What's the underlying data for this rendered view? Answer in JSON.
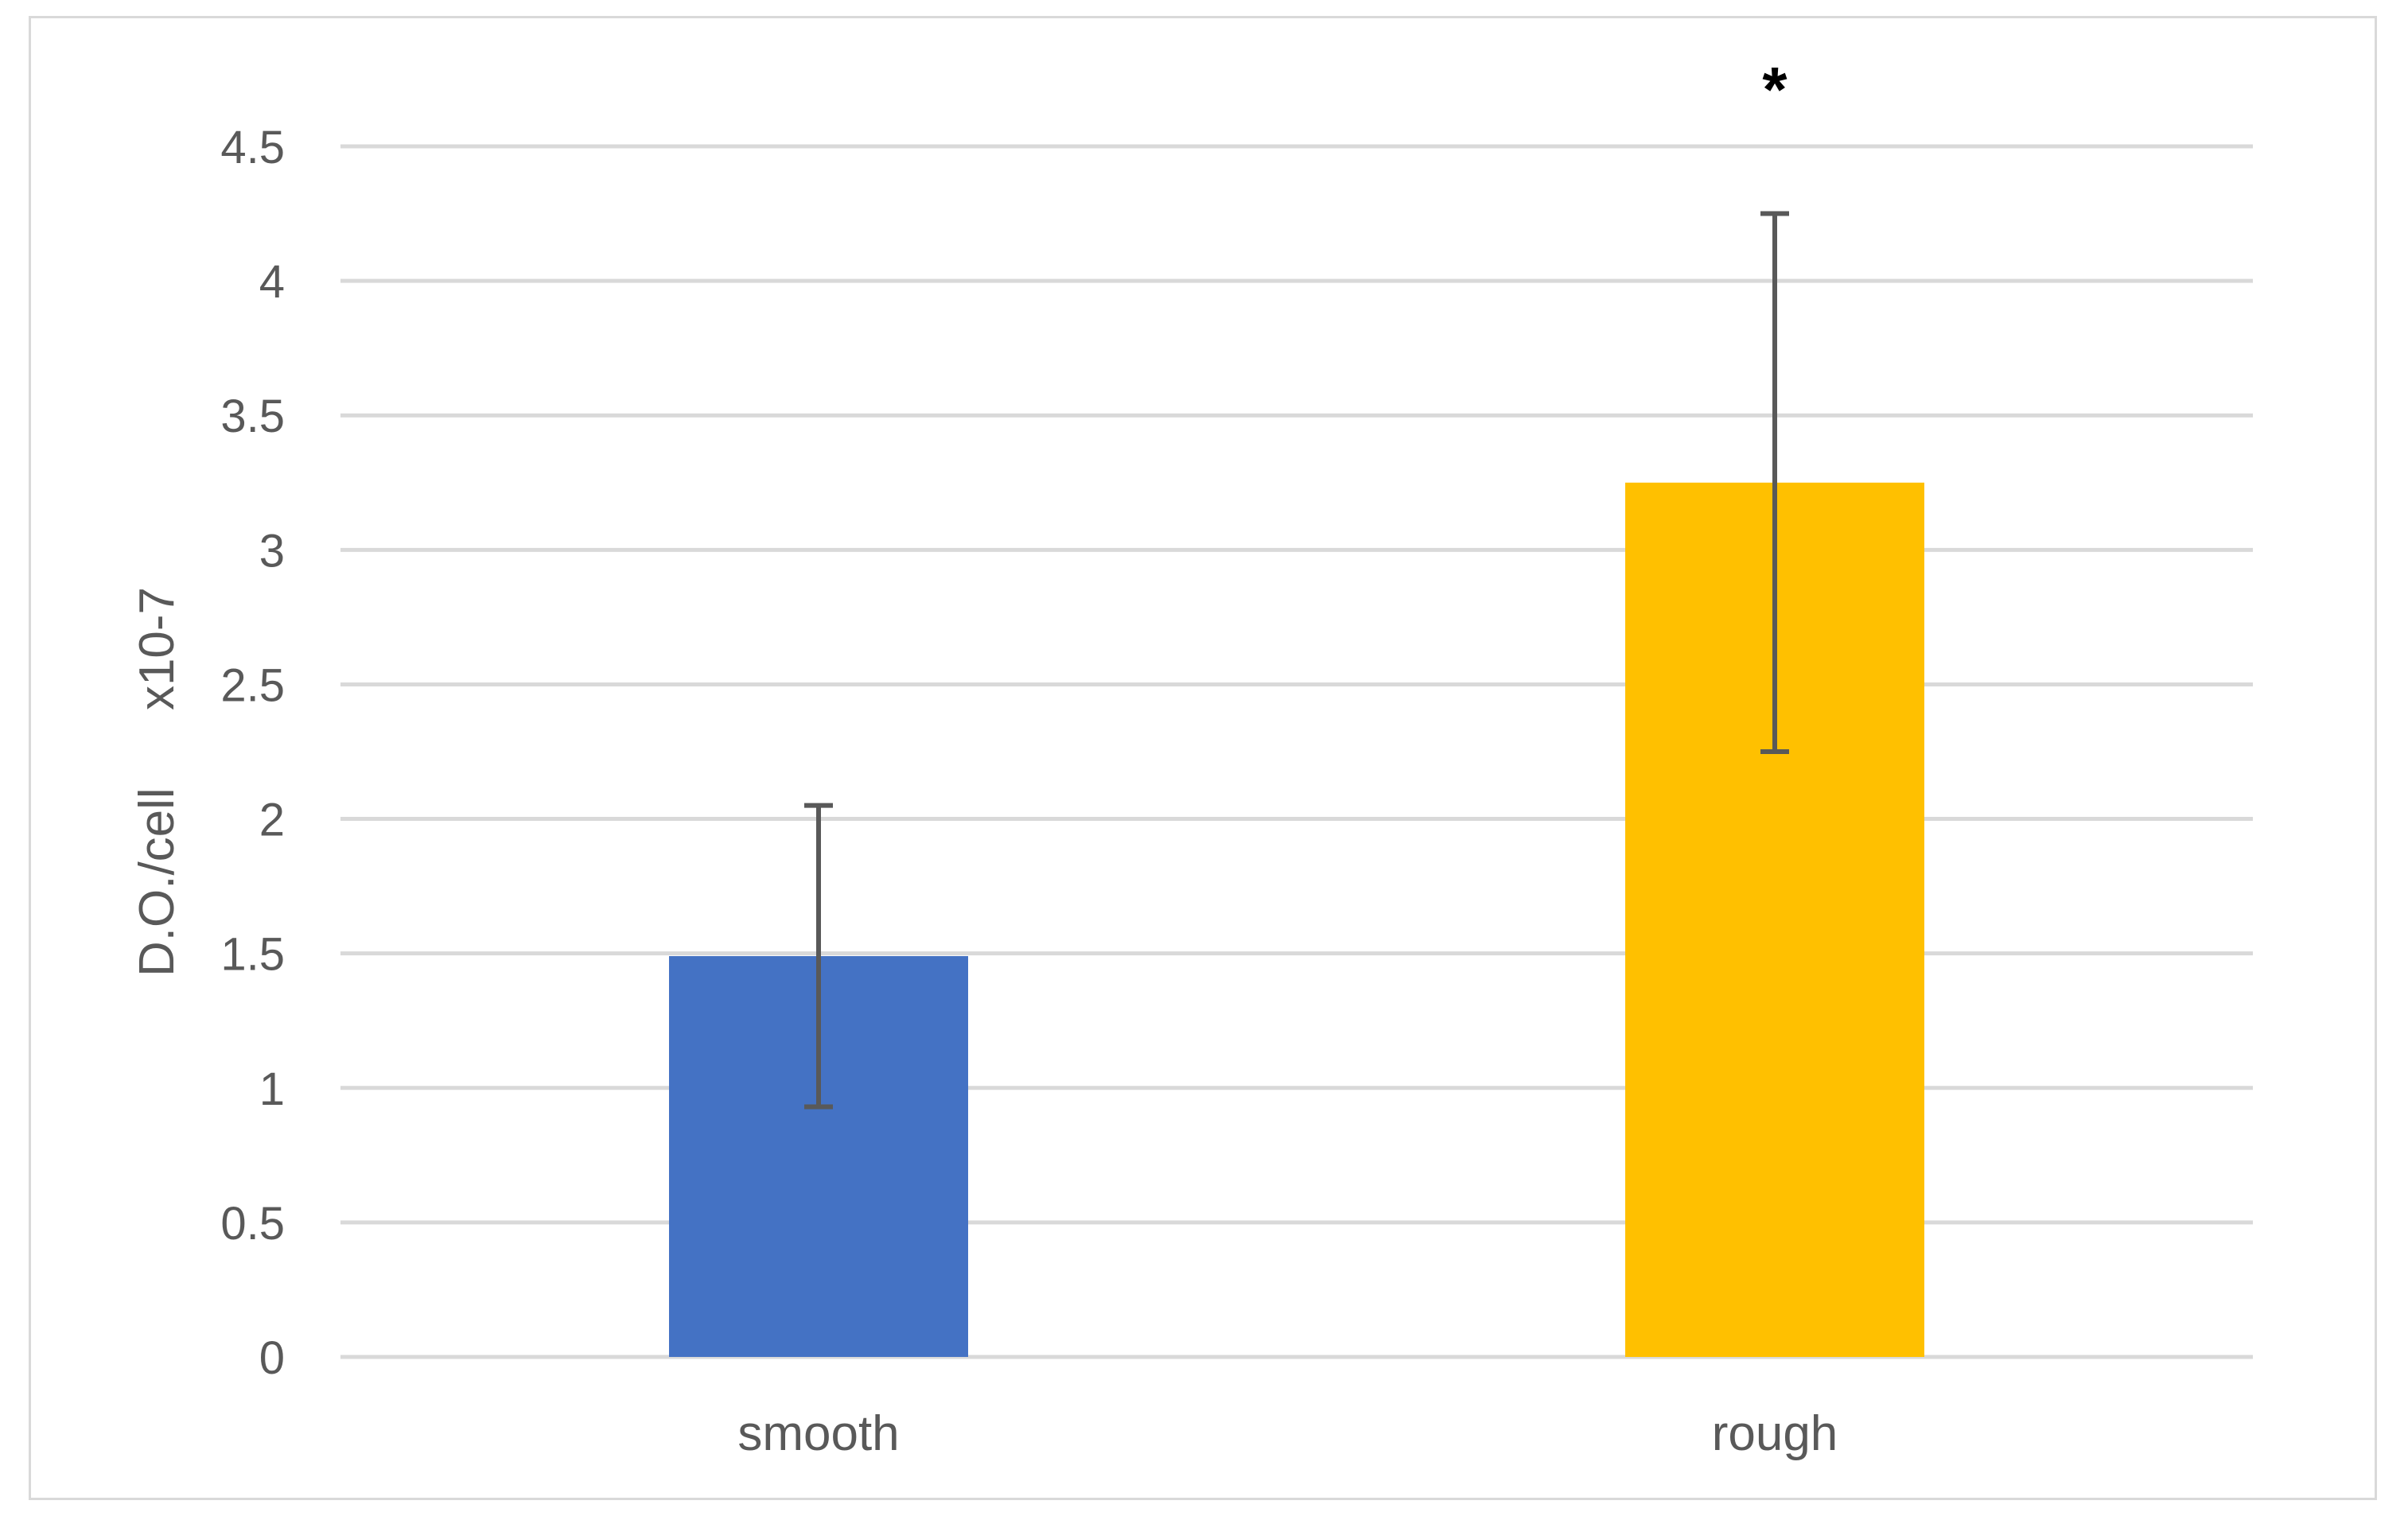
{
  "chart_data": {
    "type": "bar",
    "categories": [
      "smooth",
      "rough"
    ],
    "series": [
      {
        "values": [
          1.49,
          3.25
        ],
        "error_low": [
          0.93,
          2.25
        ],
        "error_high": [
          2.05,
          4.25
        ],
        "colors": [
          "#4472C4",
          "#FFC000"
        ]
      }
    ],
    "title": "",
    "xlabel": "",
    "ylabel": "D.O./cell",
    "ylabel_suffix": "x10-7",
    "ylim": [
      0,
      4.5
    ],
    "yticks": [
      "0",
      "0.5",
      "1",
      "1.5",
      "2",
      "2.5",
      "3",
      "3.5",
      "4",
      "4.5"
    ],
    "grid": true,
    "legend": "none",
    "annotations": [
      {
        "text": "*",
        "category": "rough"
      }
    ],
    "colors": {
      "grid": "#d9d9d9",
      "error_bar": "#595959",
      "axis_text": "#595959",
      "annotation": "#000000"
    }
  }
}
